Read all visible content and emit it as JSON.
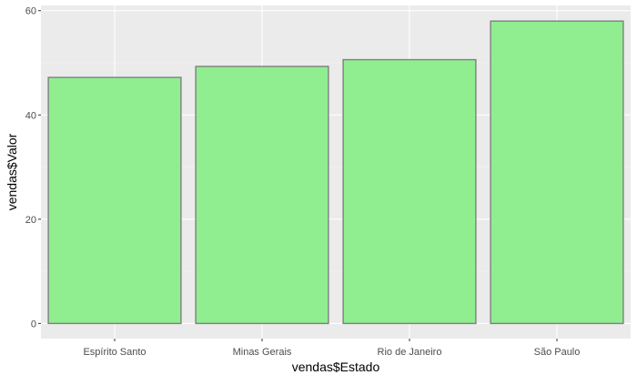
{
  "chart_data": {
    "type": "bar",
    "title": "",
    "xlabel": "vendas$Estado",
    "ylabel": "vendas$Valor",
    "categories": [
      "Espírito Santo",
      "Minas Gerais",
      "Rio de Janeiro",
      "São Paulo"
    ],
    "values": [
      47.2,
      49.3,
      50.6,
      58.0
    ],
    "ylim": [
      -2.9,
      61
    ],
    "yticks": [
      0,
      20,
      40,
      60
    ],
    "ytick_labels": [
      "0",
      "20",
      "40",
      "60"
    ],
    "grid": true,
    "legend": "none",
    "colors": {
      "bar_fill": "#90ee90",
      "bar_stroke": "#7f7f7f",
      "panel_background": "#ebebeb",
      "grid_major": "#ffffff",
      "grid_minor": "#f5f5f5",
      "tick_mark": "#333333"
    }
  }
}
